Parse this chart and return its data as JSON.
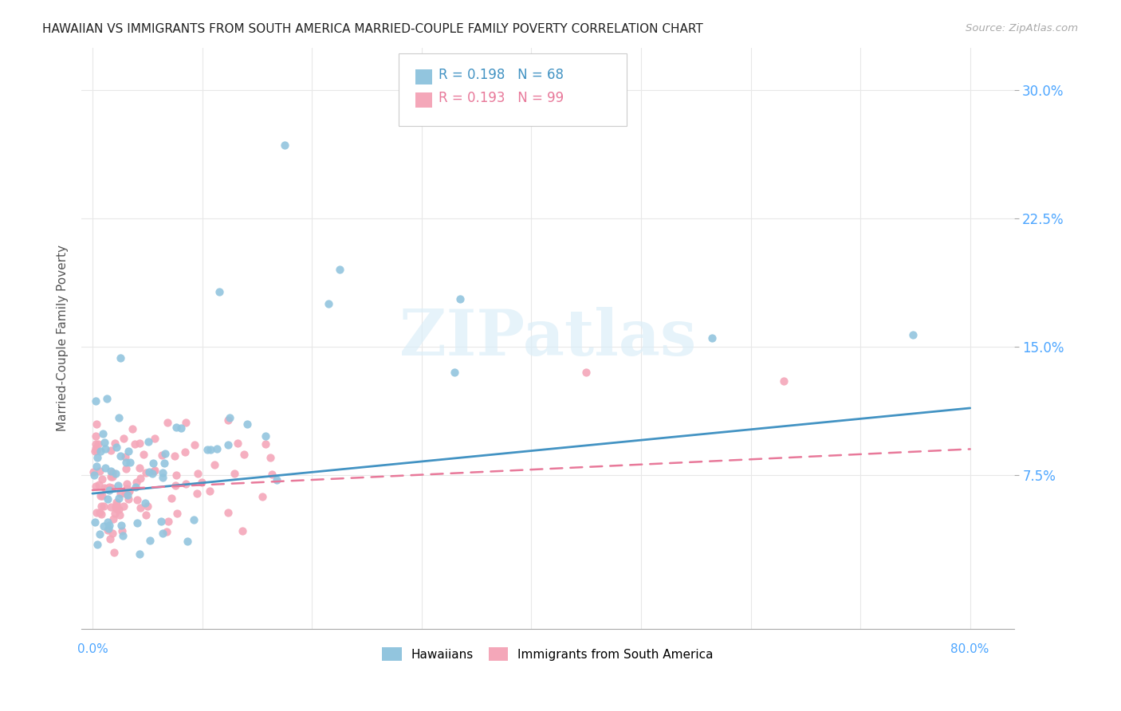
{
  "title": "HAWAIIAN VS IMMIGRANTS FROM SOUTH AMERICA MARRIED-COUPLE FAMILY POVERTY CORRELATION CHART",
  "source": "Source: ZipAtlas.com",
  "ylabel": "Married-Couple Family Poverty",
  "ytick_vals": [
    0.075,
    0.15,
    0.225,
    0.3
  ],
  "ytick_labels": [
    "7.5%",
    "15.0%",
    "22.5%",
    "30.0%"
  ],
  "xlim": [
    -0.01,
    0.84
  ],
  "ylim": [
    -0.015,
    0.325
  ],
  "hawaii_color": "#92c5de",
  "sa_color": "#f4a7b9",
  "hawaii_line_color": "#4393c3",
  "sa_line_color": "#e8799a",
  "watermark_text": "ZIPatlas",
  "hawaii_R": 0.198,
  "hawaii_N": 68,
  "sa_R": 0.193,
  "sa_N": 99,
  "grid_color": "#e8e8e8",
  "legend_box_color": "#cccccc"
}
